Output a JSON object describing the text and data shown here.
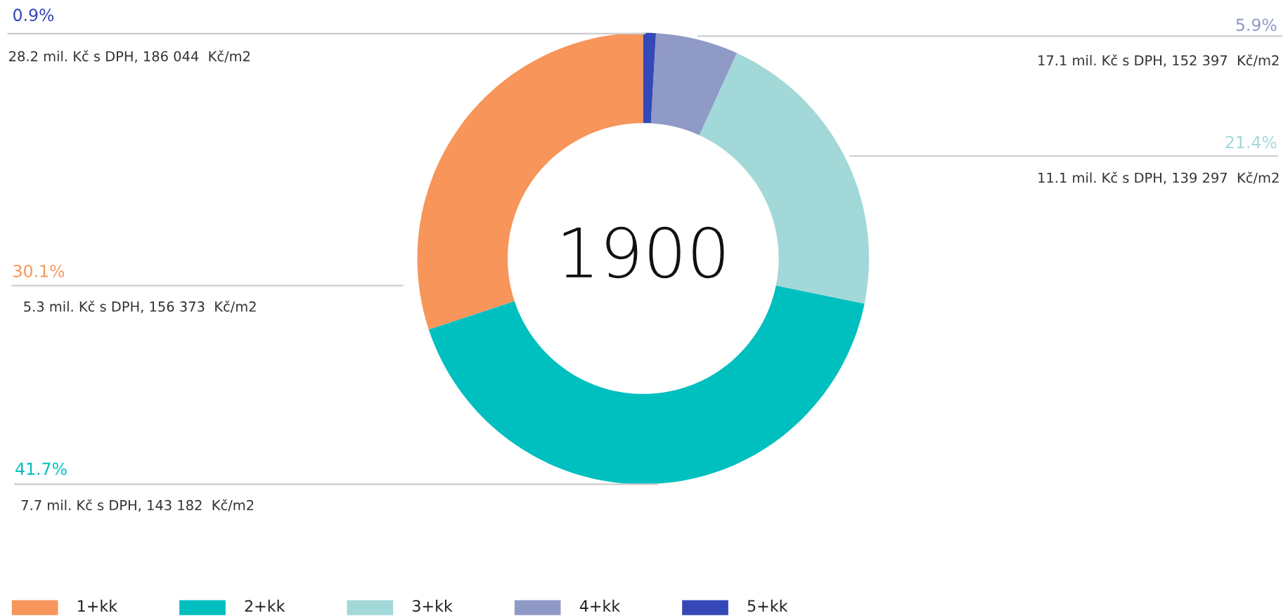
{
  "chart_data": {
    "type": "donut",
    "title": "1900",
    "categories": [
      "1+kk",
      "2+kk",
      "3+kk",
      "4+kk",
      "5+kk"
    ],
    "values": [
      30.1,
      41.7,
      21.4,
      5.9,
      0.9
    ],
    "colors": [
      "#f7955a",
      "#00bfbf",
      "#a3d8d8",
      "#8f9ac6",
      "#3548b8"
    ],
    "value_labels": [
      "30.1%",
      "41.7%",
      "21.4%",
      "5.9%",
      "0.9%"
    ],
    "annotations": [
      "5.3 mil. Kč s DPH, 156 373  Kč/m2",
      "7.7 mil. Kč s DPH, 143 182  Kč/m2",
      "11.1 mil. Kč s DPH, 139 297  Kč/m2",
      "17.1 mil. Kč s DPH, 152 397  Kč/m2",
      "28.2 mil. Kč s DPH, 186 044  Kč/m2"
    ],
    "legend": "bottom left"
  }
}
